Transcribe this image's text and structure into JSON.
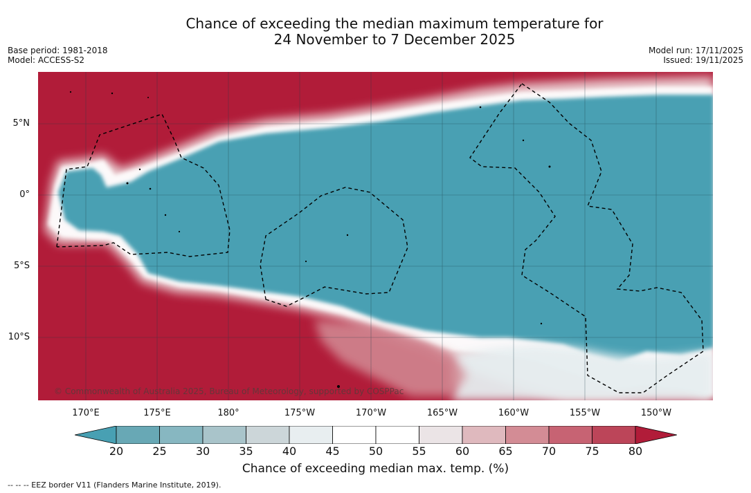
{
  "title": {
    "line1": "Chance of exceeding the median maximum temperature for",
    "line2": "24 November to 7 December 2025"
  },
  "meta_left": {
    "base_period": "Base period: 1981-2018",
    "model": "Model: ACCESS-S2"
  },
  "meta_right": {
    "model_run": "Model run: 17/11/2025",
    "issued": "Issued: 19/11/2025"
  },
  "map": {
    "lat_labels": [
      "5°N",
      "0°",
      "5°S",
      "10°S"
    ],
    "lon_labels": [
      "170°E",
      "175°E",
      "180°",
      "175°W",
      "170°W",
      "165°W",
      "160°W",
      "155°W",
      "150°W"
    ],
    "copyright": "© Commonwealth of Australia 2025, Bureau of Meteorology, supported by COSPPac",
    "colors": {
      "warm": "#b11c39",
      "cool": "#48a0b3"
    }
  },
  "colorbar": {
    "title": "Chance of exceeding median max. temp. (%)",
    "ticks": [
      "20",
      "25",
      "30",
      "35",
      "40",
      "45",
      "50",
      "55",
      "60",
      "65",
      "70",
      "75",
      "80"
    ],
    "colors": [
      "#48a0b3",
      "#68a8b5",
      "#87b7c1",
      "#a9c4ca",
      "#ccd6d9",
      "#e8eef0",
      "#ffffff",
      "#ffffff",
      "#ebe4e6",
      "#dfb9be",
      "#d38c95",
      "#c76373",
      "#bc4559",
      "#b11c39"
    ]
  },
  "footnote": "--  --  -- EEZ border V11 (Flanders Marine Institute, 2019)."
}
